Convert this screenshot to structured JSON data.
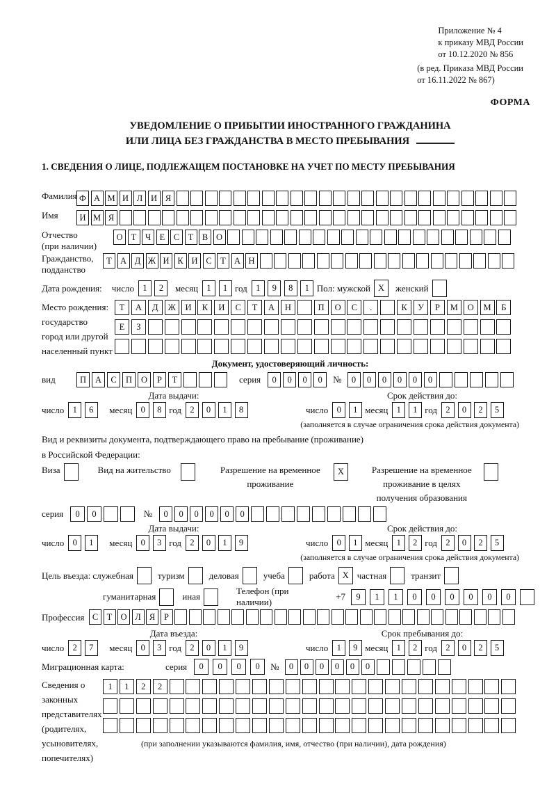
{
  "annex": {
    "ref": "Приложение № 4\nк приказу МВД России\nот 10.12.2020 № 856",
    "note": "(в ред. Приказа МВД России\nот 16.11.2022 № 867)",
    "form": "ФОРМА"
  },
  "title": {
    "line1": "УВЕДОМЛЕНИЕ О ПРИБЫТИИ ИНОСТРАННОГО ГРАЖДАНИНА",
    "line2": "ИЛИ ЛИЦА БЕЗ ГРАЖДАНСТВА В МЕСТО ПРЕБЫВАНИЯ"
  },
  "section1": {
    "heading": "1. СВЕДЕНИЯ О ЛИЦЕ, ПОДЛЕЖАЩЕМ ПОСТАНОВКЕ НА УЧЕТ ПО МЕСТУ ПРЕБЫВАНИЯ"
  },
  "labels": {
    "surname": "Фамилия",
    "name": "Имя",
    "patronymic": "Отчество",
    "patronymic_note": "(при наличии)",
    "citizenship": "Гражданство,",
    "citizenship2": "подданство",
    "birth_date": "Дата рождения:",
    "day": "число",
    "month": "месяц",
    "year": "год",
    "sex": "Пол: мужской",
    "female": "женский",
    "birth_place": "Место рождения:\nгосударство\nгород или другой\nнаселенный пункт",
    "id_doc_heading": "Документ, удостоверяющий личность:",
    "kind": "вид",
    "series": "серия",
    "number": "№",
    "issue_date": "Дата выдачи:",
    "valid_until": "Срок действия до:",
    "valid_note": "(заполняется в случае ограничения срока действия документа)",
    "residence_line1": "Вид и реквизиты документа, подтверждающего право на пребывание (проживание)",
    "residence_line2": "в Российской Федерации:",
    "visa": "Виза",
    "residence_permit": "Вид на жительство",
    "temp_residence": "Разрешение на временное проживание",
    "temp_residence_edu": "Разрешение на временное проживание в целях получения образования",
    "purpose_label": "Цель въезда: служебная",
    "tourism": "туризм",
    "business": "деловая",
    "study": "учеба",
    "work": "работа",
    "private": "частная",
    "transit": "транзит",
    "humanitarian": "гуманитарная",
    "other": "иная",
    "phone": "Телефон (при наличии)",
    "phone_prefix": "+7",
    "profession": "Профессия",
    "entry_date": "Дата въезда:",
    "stay_until": "Срок пребывания до:",
    "migration_card": "Миграционная карта:",
    "representatives": "Сведения о\nзаконных\nпредставителях\n(родителях,\nусыновителях,\nпопечителях)",
    "representatives_note": "(при заполнении указываются фамилия, имя, отчество (при наличии), дата рождения)"
  },
  "values": {
    "surname": {
      "text": "ФАМИЛИЯ",
      "count": 31
    },
    "name": {
      "text": "ИМЯ",
      "count": 31
    },
    "patronymic": {
      "text": "ОТЧЕСТВО",
      "count": 28
    },
    "citizenship": {
      "text": "ТАДЖИКИСТАН",
      "count": 29
    },
    "birth_day": {
      "text": "12",
      "count": 2
    },
    "birth_month": {
      "text": "11",
      "count": 2
    },
    "birth_year": {
      "text": "1981",
      "count": 4
    },
    "sex_male": "X",
    "sex_female": "",
    "birth_place1": {
      "text": "ТАДЖИКИСТАН ПОС. КУРМОМБ",
      "count": 24
    },
    "birth_place2": {
      "text": "ЕЗ",
      "count": 24
    },
    "birth_place3": {
      "text": "",
      "count": 24
    },
    "id_kind": {
      "text": "ПАСПОРТ",
      "count": 10
    },
    "id_series": {
      "text": "0000",
      "count": 4
    },
    "id_number": {
      "text": "000000",
      "count": 11
    },
    "id_issue_day": {
      "text": "16",
      "count": 2
    },
    "id_issue_month": {
      "text": "08",
      "count": 2
    },
    "id_issue_year": {
      "text": "2018",
      "count": 4
    },
    "id_valid_day": {
      "text": "01",
      "count": 2
    },
    "id_valid_month": {
      "text": "11",
      "count": 2
    },
    "id_valid_year": {
      "text": "2025",
      "count": 4
    },
    "visa_cb": "",
    "residence_permit_cb": "",
    "temp_residence_cb": "X",
    "temp_residence_edu_cb": "",
    "res_series": {
      "text": "00",
      "count": 4
    },
    "res_number": {
      "text": "000000",
      "count": 15
    },
    "res_issue_day": {
      "text": "01",
      "count": 2
    },
    "res_issue_month": {
      "text": "03",
      "count": 2
    },
    "res_issue_year": {
      "text": "2019",
      "count": 4
    },
    "res_valid_day": {
      "text": "01",
      "count": 2
    },
    "res_valid_month": {
      "text": "12",
      "count": 2
    },
    "res_valid_year": {
      "text": "2025",
      "count": 4
    },
    "purpose_official": "",
    "purpose_tourism": "",
    "purpose_business": "",
    "purpose_study": "",
    "purpose_work": "X",
    "purpose_private": "",
    "purpose_transit": "",
    "purpose_humanitarian": "",
    "purpose_other": "",
    "phone": {
      "text": "911000000",
      "count": 10
    },
    "profession": {
      "text": "СТОЛЯР",
      "count": 30
    },
    "entry_day": {
      "text": "27",
      "count": 2
    },
    "entry_month": {
      "text": "03",
      "count": 2
    },
    "entry_year": {
      "text": "2019",
      "count": 4
    },
    "stay_day": {
      "text": "19",
      "count": 2
    },
    "stay_month": {
      "text": "12",
      "count": 2
    },
    "stay_year": {
      "text": "2025",
      "count": 4
    },
    "mig_series": {
      "text": "0000",
      "count": 4
    },
    "mig_number": {
      "text": "000000",
      "count": 11
    },
    "rep_row1": {
      "text": "1122",
      "count": 25
    },
    "rep_row2": {
      "text": "",
      "count": 25
    },
    "rep_row3": {
      "text": "",
      "count": 25
    }
  }
}
